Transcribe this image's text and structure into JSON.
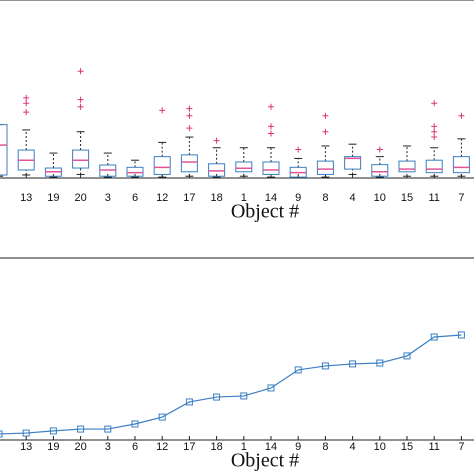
{
  "chart_data": [
    {
      "type": "box",
      "xlabel": "Object #",
      "categories": [
        null,
        "13",
        "19",
        "20",
        "3",
        "6",
        "12",
        "17",
        "18",
        "1",
        "14",
        "9",
        "8",
        "4",
        "10",
        "15",
        "11",
        "7"
      ],
      "box_color": "#3a7fc0",
      "median_color": "#e0559a",
      "flier_color": "#e0307a",
      "ylim": [
        0,
        10
      ],
      "boxes": [
        {
          "whislo": 0.1,
          "q1": 0.17,
          "med": 1.85,
          "q3": 3.0,
          "whishi": 3.0,
          "fliers": []
        },
        {
          "whislo": 0.17,
          "q1": 0.45,
          "med": 1.0,
          "q3": 1.57,
          "whishi": 2.7,
          "fliers": [
            3.7,
            4.2,
            4.5
          ]
        },
        {
          "whislo": 0.05,
          "q1": 0.1,
          "med": 0.35,
          "q3": 0.56,
          "whishi": 1.4,
          "fliers": []
        },
        {
          "whislo": 0.2,
          "q1": 0.56,
          "med": 1.0,
          "q3": 1.57,
          "whishi": 2.6,
          "fliers": [
            4.0,
            4.4,
            6.0
          ]
        },
        {
          "whislo": 0.05,
          "q1": 0.1,
          "med": 0.45,
          "q3": 0.73,
          "whishi": 1.4,
          "fliers": []
        },
        {
          "whislo": 0.05,
          "q1": 0.1,
          "med": 0.3,
          "q3": 0.6,
          "whishi": 1.0,
          "fliers": []
        },
        {
          "whislo": 0.05,
          "q1": 0.2,
          "med": 0.6,
          "q3": 1.2,
          "whishi": 2.0,
          "fliers": [
            3.8
          ]
        },
        {
          "whislo": 0.1,
          "q1": 0.35,
          "med": 0.9,
          "q3": 1.3,
          "whishi": 2.3,
          "fliers": [
            2.8,
            3.5,
            3.9
          ]
        },
        {
          "whislo": 0.05,
          "q1": 0.1,
          "med": 0.4,
          "q3": 0.8,
          "whishi": 1.7,
          "fliers": [
            2.1
          ]
        },
        {
          "whislo": 0.1,
          "q1": 0.35,
          "med": 0.55,
          "q3": 0.9,
          "whishi": 1.7,
          "fliers": []
        },
        {
          "whislo": 0.05,
          "q1": 0.2,
          "med": 0.45,
          "q3": 0.9,
          "whishi": 1.7,
          "fliers": [
            2.5,
            2.9,
            4.0
          ]
        },
        {
          "whislo": 0.02,
          "q1": 0.05,
          "med": 0.3,
          "q3": 0.6,
          "whishi": 1.1,
          "fliers": [
            1.6
          ]
        },
        {
          "whislo": 0.05,
          "q1": 0.2,
          "med": 0.5,
          "q3": 0.95,
          "whishi": 1.8,
          "fliers": [
            2.6,
            3.5
          ]
        },
        {
          "whislo": 0.2,
          "q1": 0.5,
          "med": 1.1,
          "q3": 1.2,
          "whishi": 1.9,
          "fliers": []
        },
        {
          "whislo": 0.05,
          "q1": 0.1,
          "med": 0.35,
          "q3": 0.75,
          "whishi": 1.2,
          "fliers": [
            1.6
          ]
        },
        {
          "whislo": 0.1,
          "q1": 0.35,
          "med": 0.5,
          "q3": 0.95,
          "whishi": 1.8,
          "fliers": []
        },
        {
          "whislo": 0.1,
          "q1": 0.3,
          "med": 0.5,
          "q3": 1.0,
          "whishi": 1.7,
          "fliers": [
            2.3,
            2.6,
            2.9,
            4.2
          ]
        },
        {
          "whislo": 0.1,
          "q1": 0.3,
          "med": 0.6,
          "q3": 1.2,
          "whishi": 2.2,
          "fliers": [
            3.5
          ]
        }
      ]
    },
    {
      "type": "line",
      "xlabel": "Object #",
      "categories": [
        null,
        "13",
        "19",
        "20",
        "3",
        "6",
        "12",
        "17",
        "18",
        "1",
        "14",
        "9",
        "8",
        "4",
        "10",
        "15",
        "11",
        "7"
      ],
      "color": "#3b7fc4",
      "ylim": [
        0,
        10
      ],
      "values": [
        0.33,
        0.38,
        0.5,
        0.6,
        0.6,
        0.88,
        1.26,
        2.09,
        2.36,
        2.42,
        2.86,
        3.85,
        4.07,
        4.18,
        4.23,
        4.62,
        5.66,
        5.77
      ]
    }
  ]
}
